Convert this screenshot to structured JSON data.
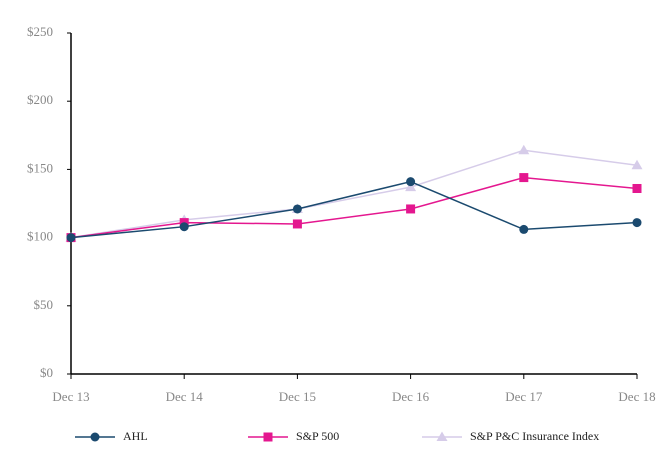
{
  "chart_data": {
    "type": "line",
    "categories": [
      "Dec 13",
      "Dec 14",
      "Dec 15",
      "Dec 16",
      "Dec 17",
      "Dec 18"
    ],
    "series": [
      {
        "name": "AHL",
        "color": "#1b4a6f",
        "marker": "circle",
        "values": [
          100,
          108,
          121,
          141,
          106,
          111
        ]
      },
      {
        "name": "S&P 500",
        "color": "#e4178f",
        "marker": "square",
        "values": [
          100,
          111,
          110,
          121,
          144,
          136
        ]
      },
      {
        "name": "S&P P&C Insurance Index",
        "color": "#d6cce9",
        "marker": "triangle",
        "values": [
          100,
          113,
          121,
          137,
          164,
          153
        ]
      }
    ],
    "ylim": [
      0,
      250
    ],
    "yticks": [
      {
        "value": 0,
        "label": "$0"
      },
      {
        "value": 50,
        "label": "$50"
      },
      {
        "value": 100,
        "label": "$100"
      },
      {
        "value": 150,
        "label": "$150"
      },
      {
        "value": 200,
        "label": "$200"
      },
      {
        "value": 250,
        "label": "$250"
      }
    ],
    "grid": false,
    "legend": "bottom"
  }
}
